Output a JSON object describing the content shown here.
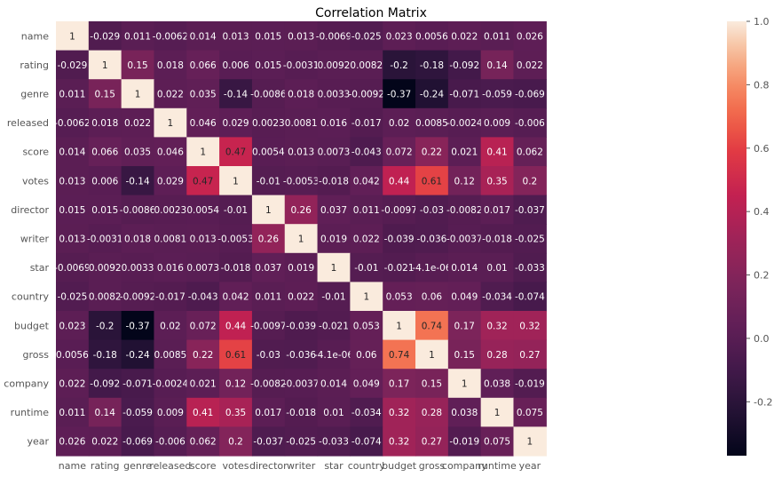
{
  "chart_data": {
    "type": "heatmap",
    "title": "Correlation Matrix",
    "variables": [
      "name",
      "rating",
      "genre",
      "released",
      "score",
      "votes",
      "director",
      "writer",
      "star",
      "country",
      "budget",
      "gross",
      "company",
      "runtime",
      "year"
    ],
    "labels": [
      [
        "1",
        "-0.029",
        "0.011",
        "-0.0062",
        "0.014",
        "0.013",
        "0.015",
        "0.013",
        "-0.0069",
        "-0.025",
        "0.023",
        "0.0056",
        "0.022",
        "0.011",
        "0.026"
      ],
      [
        "-0.029",
        "1",
        "0.15",
        "0.018",
        "0.066",
        "0.006",
        "0.015",
        "-0.0031",
        "0.0092",
        "0.0082",
        "-0.2",
        "-0.18",
        "-0.092",
        "0.14",
        "0.022"
      ],
      [
        "0.011",
        "0.15",
        "1",
        "0.022",
        "0.035",
        "-0.14",
        "-0.0086",
        "0.018",
        "0.0033",
        "-0.0092",
        "-0.37",
        "-0.24",
        "-0.071",
        "-0.059",
        "-0.069"
      ],
      [
        "-0.0062",
        "0.018",
        "0.022",
        "1",
        "0.046",
        "0.029",
        "0.0023",
        "0.0081",
        "0.016",
        "-0.017",
        "0.02",
        "0.0085",
        "-0.0024",
        "0.009",
        "-0.006"
      ],
      [
        "0.014",
        "0.066",
        "0.035",
        "0.046",
        "1",
        "0.47",
        "0.0054",
        "0.013",
        "0.0073",
        "-0.043",
        "0.072",
        "0.22",
        "0.021",
        "0.41",
        "0.062"
      ],
      [
        "0.013",
        "0.006",
        "-0.14",
        "0.029",
        "0.47",
        "1",
        "-0.01",
        "-0.0053",
        "-0.018",
        "0.042",
        "0.44",
        "0.61",
        "0.12",
        "0.35",
        "0.2"
      ],
      [
        "0.015",
        "0.015",
        "-0.0086",
        "0.0023",
        "0.0054",
        "-0.01",
        "1",
        "0.26",
        "0.037",
        "0.011",
        "-0.0097",
        "-0.03",
        "-0.0082",
        "0.017",
        "-0.037"
      ],
      [
        "0.013",
        "-0.0031",
        "0.018",
        "0.0081",
        "0.013",
        "-0.0053",
        "0.26",
        "1",
        "0.019",
        "0.022",
        "-0.039",
        "-0.036",
        "-0.0037",
        "-0.018",
        "-0.025"
      ],
      [
        "-0.0069",
        "0.0092",
        "0.0033",
        "0.016",
        "0.0073",
        "-0.018",
        "0.037",
        "0.019",
        "1",
        "-0.01",
        "-0.021",
        "-4.1e-06",
        "0.014",
        "0.01",
        "-0.033"
      ],
      [
        "-0.025",
        "0.0082",
        "-0.0092",
        "-0.017",
        "-0.043",
        "0.042",
        "0.011",
        "0.022",
        "-0.01",
        "1",
        "0.053",
        "0.06",
        "0.049",
        "-0.034",
        "-0.074"
      ],
      [
        "0.023",
        "-0.2",
        "-0.37",
        "0.02",
        "0.072",
        "0.44",
        "-0.0097",
        "-0.039",
        "-0.021",
        "0.053",
        "1",
        "0.74",
        "0.17",
        "0.32",
        "0.32"
      ],
      [
        "0.0056",
        "-0.18",
        "-0.24",
        "0.0085",
        "0.22",
        "0.61",
        "-0.03",
        "-0.036",
        "-4.1e-06",
        "0.06",
        "0.74",
        "1",
        "0.15",
        "0.28",
        "0.27"
      ],
      [
        "0.022",
        "-0.092",
        "-0.071",
        "-0.0024",
        "0.021",
        "0.12",
        "-0.0082",
        "-0.0037",
        "0.014",
        "0.049",
        "0.17",
        "0.15",
        "1",
        "0.038",
        "-0.019"
      ],
      [
        "0.011",
        "0.14",
        "-0.059",
        "0.009",
        "0.41",
        "0.35",
        "0.017",
        "-0.018",
        "0.01",
        "-0.034",
        "0.32",
        "0.28",
        "0.038",
        "1",
        "0.075"
      ],
      [
        "0.026",
        "0.022",
        "-0.069",
        "-0.006",
        "0.062",
        "0.2",
        "-0.037",
        "-0.025",
        "-0.033",
        "-0.074",
        "0.32",
        "0.27",
        "-0.019",
        "0.075",
        "1"
      ]
    ],
    "colorbar": {
      "range": [
        -0.37,
        1.0
      ],
      "ticks": [
        "-0.2",
        "0.0",
        "0.2",
        "0.4",
        "0.6",
        "0.8",
        "1.0"
      ],
      "tick_values": [
        -0.2,
        0.0,
        0.2,
        0.4,
        0.6,
        0.8,
        1.0
      ],
      "colormap": "rocket"
    },
    "colors": {
      "low": "#03051a",
      "high": "#faebdd",
      "light_text": "#ffffff",
      "dark_text": "#262626",
      "axis_text": "#555555",
      "title_text": "#000000"
    }
  }
}
